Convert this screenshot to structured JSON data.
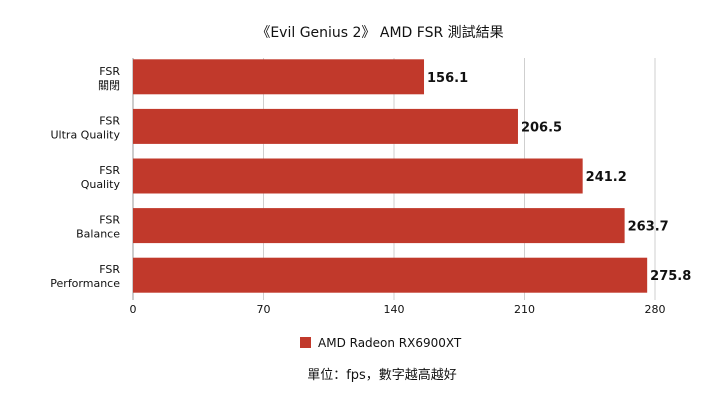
{
  "chart_data": {
    "type": "bar",
    "orientation": "horizontal",
    "title": "《Evil Genius 2》 AMD FSR 測試結果",
    "categories": [
      [
        "FSR",
        "關閉"
      ],
      [
        "FSR",
        "Ultra Quality"
      ],
      [
        "FSR",
        "Quality"
      ],
      [
        "FSR",
        "Balance"
      ],
      [
        "FSR",
        "Performance"
      ]
    ],
    "series": [
      {
        "name": "AMD Radeon RX6900XT",
        "values": [
          156.1,
          206.5,
          241.2,
          263.7,
          275.8
        ],
        "color": "#c1392b"
      }
    ],
    "xlim": [
      0,
      280
    ],
    "x_ticks": [
      0,
      70,
      140,
      210,
      280
    ],
    "grid": true,
    "legend_position": "bottom",
    "footnote": "單位：fps，數字越高越好"
  }
}
